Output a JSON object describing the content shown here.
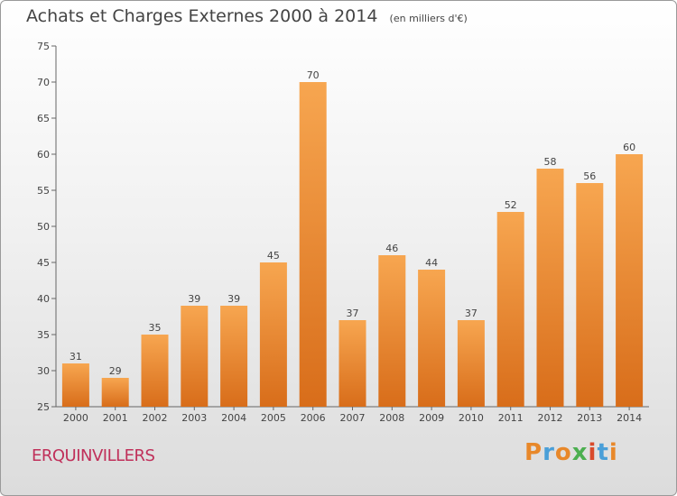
{
  "header": {
    "title": "Achats et Charges Externes 2000 à 2014",
    "unit": "(en milliers d'€)"
  },
  "footer": {
    "town": "ERQUINVILLERS",
    "logo": "Proxiti"
  },
  "colors": {
    "bar_light": "#f7a650",
    "bar_dark": "#d86d1a",
    "town": "#c0305a",
    "logo_letters": [
      "#e8882a",
      "#4a9fd8",
      "#e8882a",
      "#4caf50",
      "#d94a2b",
      "#4a9fd8",
      "#e8882a"
    ]
  },
  "chart_data": {
    "type": "bar",
    "title": "Achats et Charges Externes 2000 à 2014",
    "subtitle": "(en milliers d'€)",
    "categories": [
      "2000",
      "2001",
      "2002",
      "2003",
      "2004",
      "2005",
      "2006",
      "2007",
      "2008",
      "2009",
      "2010",
      "2011",
      "2012",
      "2013",
      "2014"
    ],
    "values": [
      31,
      29,
      35,
      39,
      39,
      45,
      70,
      37,
      46,
      44,
      37,
      52,
      58,
      56,
      60
    ],
    "ylim": [
      25,
      75
    ],
    "yticks": [
      25,
      30,
      35,
      40,
      45,
      50,
      55,
      60,
      65,
      70,
      75
    ],
    "grid": false,
    "data_labels": true
  }
}
